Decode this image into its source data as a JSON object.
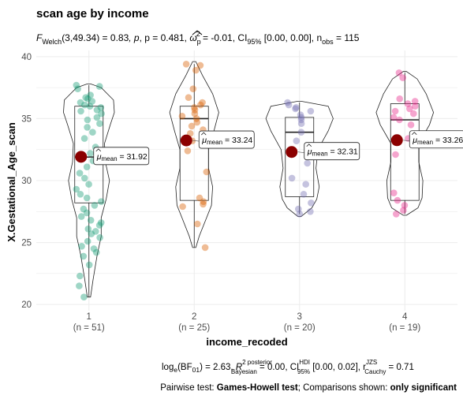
{
  "chart_data": {
    "type": "violin",
    "title": "scan age by income",
    "subtitle": {
      "test_name": "Welch",
      "test_stat": "(3,49.34) = 0.83",
      "p_text": ", p = 0.481, ",
      "omega": " = -0.01, CI",
      "omega_sub": "p",
      "omega_sup": "2",
      "ci_level": "95%",
      "ci_text": " [0.00, 0.00], n",
      "nobs_sub": "obs",
      "nobs_text": " = 115"
    },
    "xlabel": "income_recoded",
    "ylabel": "X.Gestational_Age_scan",
    "ylim": [
      19.5,
      40.5
    ],
    "yticks": [
      20,
      25,
      30,
      35,
      40
    ],
    "grid": true,
    "categories": [
      "1",
      "2",
      "3",
      "4"
    ],
    "counts": [
      "(n = 51)",
      "(n = 25)",
      "(n = 20)",
      "(n = 19)"
    ],
    "colors": [
      "#1b9e77",
      "#d95f02",
      "#7570b3",
      "#e7298a"
    ],
    "means": [
      31.92,
      33.24,
      32.31,
      33.26
    ],
    "mean_labels": [
      "31.92",
      "33.24",
      "32.31",
      "33.26"
    ],
    "mean_label_prefix": "μ",
    "mean_label_sub": "mean",
    "boxplots": [
      {
        "q1": 28.2,
        "median": 31.9,
        "q3": 36.0,
        "min": 20.6,
        "max": 37.7
      },
      {
        "q1": 28.4,
        "median": 35.0,
        "q3": 36.0,
        "min": 24.6,
        "max": 39.4
      },
      {
        "q1": 28.7,
        "median": 33.9,
        "q3": 35.1,
        "min": 27.3,
        "max": 36.3
      },
      {
        "q1": 28.4,
        "median": 34.9,
        "q3": 36.2,
        "min": 27.3,
        "max": 38.7
      }
    ],
    "violins": [
      [
        [
          20.6,
          0.004
        ],
        [
          22,
          0.01
        ],
        [
          24,
          0.02
        ],
        [
          25.5,
          0.03
        ],
        [
          27,
          0.03
        ],
        [
          28.5,
          0.042
        ],
        [
          30,
          0.05
        ],
        [
          31.5,
          0.04
        ],
        [
          33,
          0.038
        ],
        [
          34.5,
          0.052
        ],
        [
          35.5,
          0.062
        ],
        [
          36.5,
          0.06
        ],
        [
          37.5,
          0.03
        ],
        [
          37.8,
          0.004
        ]
      ],
      [
        [
          24.6,
          0.004
        ],
        [
          25.5,
          0.012
        ],
        [
          27,
          0.03
        ],
        [
          28,
          0.042
        ],
        [
          29.5,
          0.045
        ],
        [
          31,
          0.035
        ],
        [
          32.5,
          0.035
        ],
        [
          34,
          0.048
        ],
        [
          35.5,
          0.06
        ],
        [
          37,
          0.045
        ],
        [
          38.5,
          0.02
        ],
        [
          39.6,
          0.004
        ]
      ],
      [
        [
          27.1,
          0.004
        ],
        [
          27.8,
          0.03
        ],
        [
          28.5,
          0.042
        ],
        [
          29.5,
          0.048
        ],
        [
          31,
          0.04
        ],
        [
          32.5,
          0.045
        ],
        [
          34,
          0.07
        ],
        [
          35,
          0.082
        ],
        [
          36,
          0.07
        ],
        [
          36.4,
          0.004
        ]
      ],
      [
        [
          27.2,
          0.004
        ],
        [
          27.8,
          0.032
        ],
        [
          28.6,
          0.042
        ],
        [
          30,
          0.044
        ],
        [
          31.5,
          0.034
        ],
        [
          33,
          0.034
        ],
        [
          34.5,
          0.06
        ],
        [
          35.5,
          0.07
        ],
        [
          37,
          0.052
        ],
        [
          38.2,
          0.03
        ],
        [
          38.8,
          0.004
        ]
      ]
    ],
    "points": [
      [
        37.7,
        37.6,
        37.4,
        36.9,
        36.7,
        36.6,
        36.4,
        36.3,
        36.1,
        36.0,
        35.9,
        35.7,
        35.6,
        35.4,
        35.1,
        34.9,
        34.6,
        34.3,
        33.9,
        33.4,
        32.7,
        32.2,
        31.6,
        31.1,
        30.6,
        30.2,
        29.7,
        29.3,
        28.9,
        28.6,
        28.3,
        28.0,
        27.7,
        27.4,
        27.1,
        26.8,
        26.6,
        26.4,
        26.1,
        25.9,
        25.7,
        25.4,
        25.1,
        24.7,
        24.5,
        24.2,
        23.9,
        23.2,
        22.3,
        21.5,
        20.6
      ],
      [
        39.4,
        39.3,
        38.9,
        37.4,
        36.7,
        36.3,
        36.1,
        35.9,
        35.7,
        35.4,
        35.2,
        35.0,
        34.7,
        34.4,
        34.1,
        33.8,
        33.2,
        32.4,
        30.7,
        28.6,
        28.3,
        28.1,
        27.9,
        26.5,
        24.6
      ],
      [
        36.3,
        36.1,
        35.9,
        35.8,
        35.6,
        35.3,
        35.1,
        34.9,
        34.6,
        33.9,
        33.2,
        32.8,
        31.4,
        30.2,
        29.7,
        28.9,
        28.2,
        27.7,
        27.5,
        27.3
      ],
      [
        38.7,
        38.3,
        36.6,
        36.4,
        36.2,
        36.0,
        35.8,
        35.6,
        35.4,
        35.1,
        34.9,
        34.5,
        33.4,
        32.1,
        29.0,
        28.4,
        28.0,
        27.6,
        27.3
      ]
    ],
    "caption": {
      "bf_text": "(BF",
      "bf_log_sub": "e",
      "bf_sub": "01",
      "bf_value": ") = 2.63, ",
      "r2": "R",
      "r2_sup": "2 posterior",
      "r2_sub": "Bayesian",
      "r2_value": " = 0.00, CI",
      "ci_sup": "HDI",
      "ci_sub": "95%",
      "ci_value": " [0.00, 0.02], r",
      "r_sup": "JZS",
      "r_sub": "Cauchy",
      "r_value": " = 0.71",
      "log": "log"
    },
    "pairwise": {
      "prefix": "Pairwise test: ",
      "test": "Games-Howell test",
      "middle": "; Comparisons shown: ",
      "shown": "only significant"
    }
  }
}
